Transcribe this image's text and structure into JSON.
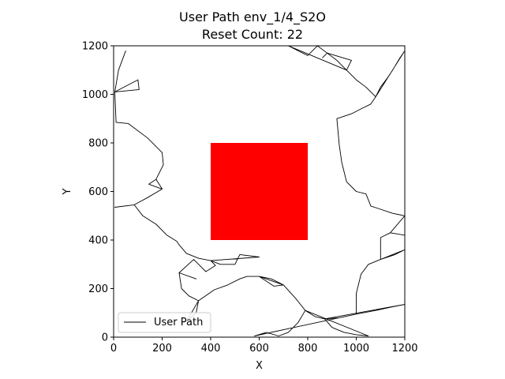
{
  "chart_data": {
    "type": "line",
    "title": "User Path env_1/4_S2O",
    "subtitle": "Reset Count: 22",
    "xlabel": "X",
    "ylabel": "Y",
    "xlim": [
      0,
      1200
    ],
    "ylim": [
      0,
      1200
    ],
    "xticks": [
      0,
      200,
      400,
      600,
      800,
      1000,
      1200
    ],
    "yticks": [
      0,
      200,
      400,
      600,
      800,
      1000,
      1200
    ],
    "xtick_labels": [
      "0",
      "200",
      "400",
      "600",
      "800",
      "1000",
      "1200"
    ],
    "ytick_labels": [
      "0",
      "200",
      "400",
      "600",
      "800",
      "1000",
      "1200"
    ],
    "grid": false,
    "legend": {
      "location": "lower-left",
      "entries": [
        "User Path"
      ]
    },
    "obstacle": {
      "x": [
        400,
        800
      ],
      "y": [
        400,
        800
      ],
      "color": "#ff0000"
    },
    "series": [
      {
        "name": "User Path",
        "color": "#000000",
        "path": [
          [
            50,
            1180
          ],
          [
            20,
            1100
          ],
          [
            5,
            1010
          ],
          [
            5,
            1010
          ],
          [
            100,
            1060
          ],
          [
            105,
            1020
          ],
          [
            5,
            1010
          ],
          [
            10,
            885
          ],
          [
            60,
            880
          ],
          [
            60,
            880
          ],
          [
            140,
            820
          ],
          [
            200,
            760
          ],
          [
            205,
            710
          ],
          [
            175,
            650
          ],
          [
            200,
            610
          ],
          [
            175,
            650
          ],
          [
            145,
            630
          ],
          [
            200,
            610
          ],
          [
            140,
            575
          ],
          [
            85,
            545
          ],
          [
            5,
            535
          ],
          [
            85,
            545
          ],
          [
            120,
            500
          ],
          [
            175,
            465
          ],
          [
            220,
            420
          ],
          [
            260,
            395
          ],
          [
            260,
            395
          ],
          [
            270,
            380
          ],
          [
            300,
            345
          ],
          [
            350,
            325
          ],
          [
            400,
            315
          ],
          [
            400,
            315
          ],
          [
            440,
            300
          ],
          [
            500,
            300
          ],
          [
            520,
            340
          ],
          [
            600,
            330
          ],
          [
            400,
            315
          ],
          [
            410,
            305
          ],
          [
            420,
            295
          ],
          [
            380,
            270
          ],
          [
            380,
            270
          ],
          [
            330,
            320
          ],
          [
            330,
            320
          ],
          [
            270,
            265
          ],
          [
            340,
            240
          ],
          [
            270,
            265
          ],
          [
            280,
            200
          ],
          [
            310,
            170
          ],
          [
            350,
            150
          ],
          [
            350,
            150
          ],
          [
            340,
            100
          ],
          [
            300,
            65
          ],
          [
            350,
            150
          ],
          [
            415,
            195
          ],
          [
            470,
            215
          ],
          [
            520,
            240
          ],
          [
            550,
            250
          ],
          [
            600,
            250
          ],
          [
            600,
            250
          ],
          [
            650,
            240
          ],
          [
            700,
            215
          ],
          [
            600,
            250
          ],
          [
            660,
            210
          ],
          [
            700,
            215
          ],
          [
            750,
            160
          ],
          [
            790,
            110
          ],
          [
            790,
            110
          ],
          [
            830,
            85
          ],
          [
            870,
            75
          ],
          [
            870,
            75
          ],
          [
            930,
            80
          ],
          [
            1000,
            95
          ],
          [
            1000,
            95
          ],
          [
            1080,
            110
          ],
          [
            1150,
            125
          ],
          [
            1200,
            135
          ],
          [
            870,
            75
          ],
          [
            900,
            40
          ],
          [
            950,
            20
          ],
          [
            1000,
            10
          ],
          [
            1050,
            5
          ],
          [
            790,
            110
          ],
          [
            760,
            60
          ],
          [
            720,
            20
          ],
          [
            680,
            5
          ],
          [
            630,
            20
          ],
          [
            580,
            5
          ],
          [
            1000,
            95
          ],
          [
            1000,
            180
          ],
          [
            1020,
            260
          ],
          [
            1050,
            300
          ],
          [
            1100,
            320
          ],
          [
            1100,
            320
          ],
          [
            1160,
            340
          ],
          [
            1200,
            360
          ],
          [
            1100,
            320
          ],
          [
            1100,
            380
          ],
          [
            1100,
            410
          ],
          [
            1140,
            430
          ],
          [
            1140,
            430
          ],
          [
            1200,
            420
          ],
          [
            1140,
            430
          ],
          [
            1200,
            500
          ],
          [
            1150,
            510
          ],
          [
            1090,
            530
          ],
          [
            1090,
            530
          ],
          [
            1060,
            540
          ],
          [
            1040,
            590
          ],
          [
            1040,
            590
          ],
          [
            1000,
            600
          ],
          [
            960,
            640
          ],
          [
            940,
            720
          ],
          [
            940,
            720
          ],
          [
            930,
            790
          ],
          [
            920,
            900
          ],
          [
            920,
            900
          ],
          [
            980,
            920
          ],
          [
            1020,
            940
          ],
          [
            1020,
            940
          ],
          [
            1060,
            960
          ],
          [
            1080,
            990
          ],
          [
            1080,
            990
          ],
          [
            1100,
            1030
          ],
          [
            1130,
            1070
          ],
          [
            1150,
            1100
          ],
          [
            1180,
            1150
          ],
          [
            1200,
            1180
          ],
          [
            1080,
            990
          ],
          [
            1040,
            1030
          ],
          [
            1000,
            1060
          ],
          [
            960,
            1100
          ],
          [
            960,
            1100
          ],
          [
            920,
            1140
          ],
          [
            880,
            1170
          ],
          [
            840,
            1200
          ],
          [
            840,
            1200
          ],
          [
            820,
            1180
          ],
          [
            800,
            1160
          ],
          [
            800,
            1160
          ],
          [
            760,
            1180
          ],
          [
            720,
            1200
          ],
          [
            960,
            1100
          ],
          [
            980,
            1140
          ],
          [
            880,
            1170
          ],
          [
            860,
            1150
          ]
        ]
      }
    ]
  }
}
